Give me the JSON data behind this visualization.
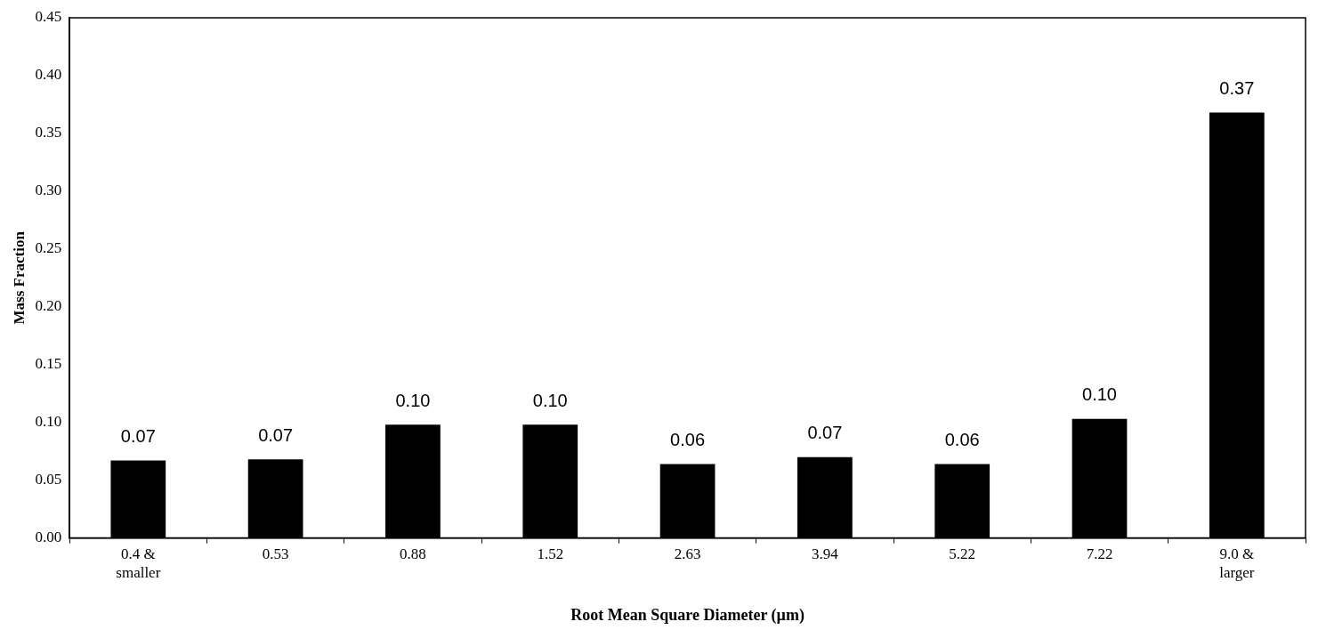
{
  "chart_data": {
    "type": "bar",
    "xlabel": "Root Mean Square Diameter (µm)",
    "ylabel": "Mass Fraction",
    "categories": [
      "0.4 &\nsmaller",
      "0.53",
      "0.88",
      "1.52",
      "2.63",
      "3.94",
      "5.22",
      "7.22",
      "9.0 &\nlarger"
    ],
    "values": [
      0.067,
      0.068,
      0.098,
      0.098,
      0.064,
      0.07,
      0.064,
      0.103,
      0.368
    ],
    "value_labels": [
      "0.07",
      "0.07",
      "0.10",
      "0.10",
      "0.06",
      "0.07",
      "0.06",
      "0.10",
      "0.37"
    ],
    "color": "#000000",
    "ylim": [
      0,
      0.45
    ],
    "yticks": [
      {
        "value": 0,
        "label": "0.00"
      },
      {
        "value": 0.05,
        "label": "0.05"
      },
      {
        "value": 0.1,
        "label": "0.10"
      },
      {
        "value": 0.15,
        "label": "0.15"
      },
      {
        "value": 0.2,
        "label": "0.20"
      },
      {
        "value": 0.25,
        "label": "0.25"
      },
      {
        "value": 0.3,
        "label": "0.30"
      },
      {
        "value": 0.35,
        "label": "0.35"
      },
      {
        "value": 0.4,
        "label": "0.40"
      },
      {
        "value": 0.45,
        "label": "0.45"
      }
    ],
    "grid": false,
    "legend": false
  }
}
